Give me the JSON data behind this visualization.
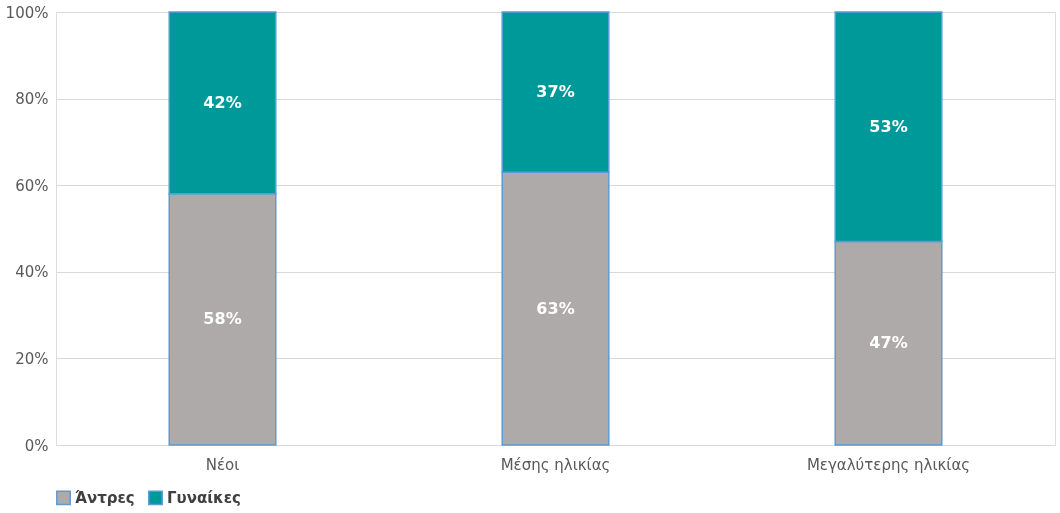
{
  "chart_data": {
    "type": "bar",
    "stacked": true,
    "categories": [
      "Νέοι",
      "Μέσης ηλικίας",
      "Μεγαλύτερης ηλικίας"
    ],
    "series": [
      {
        "name": "Άντρες",
        "color": "#aeaaaa",
        "values": [
          58,
          63,
          47
        ],
        "value_labels": [
          "58%",
          "63%",
          "47%"
        ]
      },
      {
        "name": "Γυναίκες",
        "color": "#009999",
        "values": [
          42,
          37,
          53
        ],
        "value_labels": [
          "42%",
          "37%",
          "53%"
        ]
      }
    ],
    "ylim": [
      0,
      100
    ],
    "yticks": [
      {
        "value": 0,
        "label": "0%"
      },
      {
        "value": 20,
        "label": "20%"
      },
      {
        "value": 40,
        "label": "40%"
      },
      {
        "value": 60,
        "label": "60%"
      },
      {
        "value": 80,
        "label": "80%"
      },
      {
        "value": 100,
        "label": "100%"
      }
    ],
    "grid": "y",
    "legend": "bottom"
  }
}
